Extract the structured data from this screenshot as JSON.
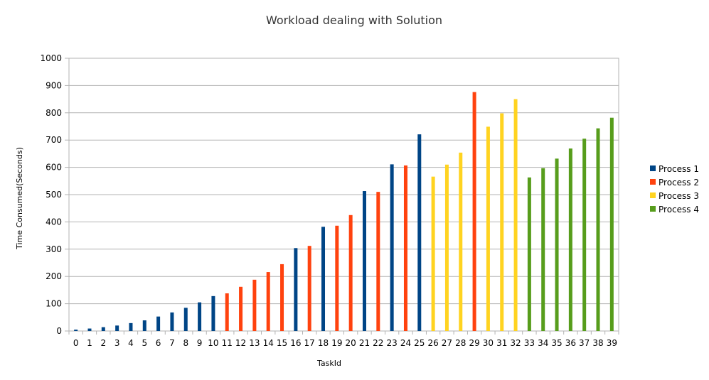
{
  "chart_data": {
    "type": "bar",
    "title": "Workload dealing with Solution",
    "xlabel": "TaskId",
    "ylabel": "Time Consumed(Seconds)",
    "ylim": [
      0,
      1000
    ],
    "yticks": [
      0,
      100,
      200,
      300,
      400,
      500,
      600,
      700,
      800,
      900,
      1000
    ],
    "grid": true,
    "legend_position": "right",
    "categories": [
      "0",
      "1",
      "2",
      "3",
      "4",
      "5",
      "6",
      "7",
      "8",
      "9",
      "10",
      "11",
      "12",
      "13",
      "14",
      "15",
      "16",
      "17",
      "18",
      "19",
      "20",
      "21",
      "22",
      "23",
      "24",
      "25",
      "26",
      "27",
      "28",
      "29",
      "30",
      "31",
      "32",
      "33",
      "34",
      "35",
      "36",
      "37",
      "38",
      "39"
    ],
    "series": [
      {
        "name": "Process 1",
        "color": "#004586",
        "values": [
          5,
          9,
          14,
          20,
          29,
          39,
          53,
          68,
          85,
          105,
          128,
          null,
          null,
          null,
          null,
          null,
          304,
          null,
          382,
          null,
          null,
          513,
          null,
          611,
          null,
          721,
          null,
          null,
          null,
          null,
          null,
          null,
          null,
          null,
          null,
          null,
          null,
          null,
          null,
          null
        ]
      },
      {
        "name": "Process 2",
        "color": "#ff420e",
        "values": [
          null,
          null,
          null,
          null,
          null,
          null,
          null,
          null,
          null,
          null,
          null,
          138,
          162,
          188,
          216,
          245,
          null,
          312,
          null,
          386,
          425,
          null,
          510,
          null,
          607,
          null,
          null,
          null,
          null,
          876,
          null,
          null,
          null,
          null,
          null,
          null,
          null,
          null,
          null,
          null
        ]
      },
      {
        "name": "Process 3",
        "color": "#ffd320",
        "values": [
          null,
          null,
          null,
          null,
          null,
          null,
          null,
          null,
          null,
          null,
          null,
          null,
          null,
          null,
          null,
          null,
          null,
          null,
          null,
          null,
          null,
          null,
          null,
          null,
          null,
          null,
          566,
          610,
          654,
          null,
          749,
          798,
          850,
          null,
          null,
          null,
          null,
          null,
          null,
          null
        ]
      },
      {
        "name": "Process 4",
        "color": "#579d1c",
        "values": [
          null,
          null,
          null,
          null,
          null,
          null,
          null,
          null,
          null,
          null,
          null,
          null,
          null,
          null,
          null,
          null,
          null,
          null,
          null,
          null,
          null,
          null,
          null,
          null,
          null,
          null,
          null,
          null,
          null,
          null,
          null,
          null,
          null,
          563,
          597,
          632,
          669,
          705,
          743,
          782
        ]
      }
    ]
  }
}
